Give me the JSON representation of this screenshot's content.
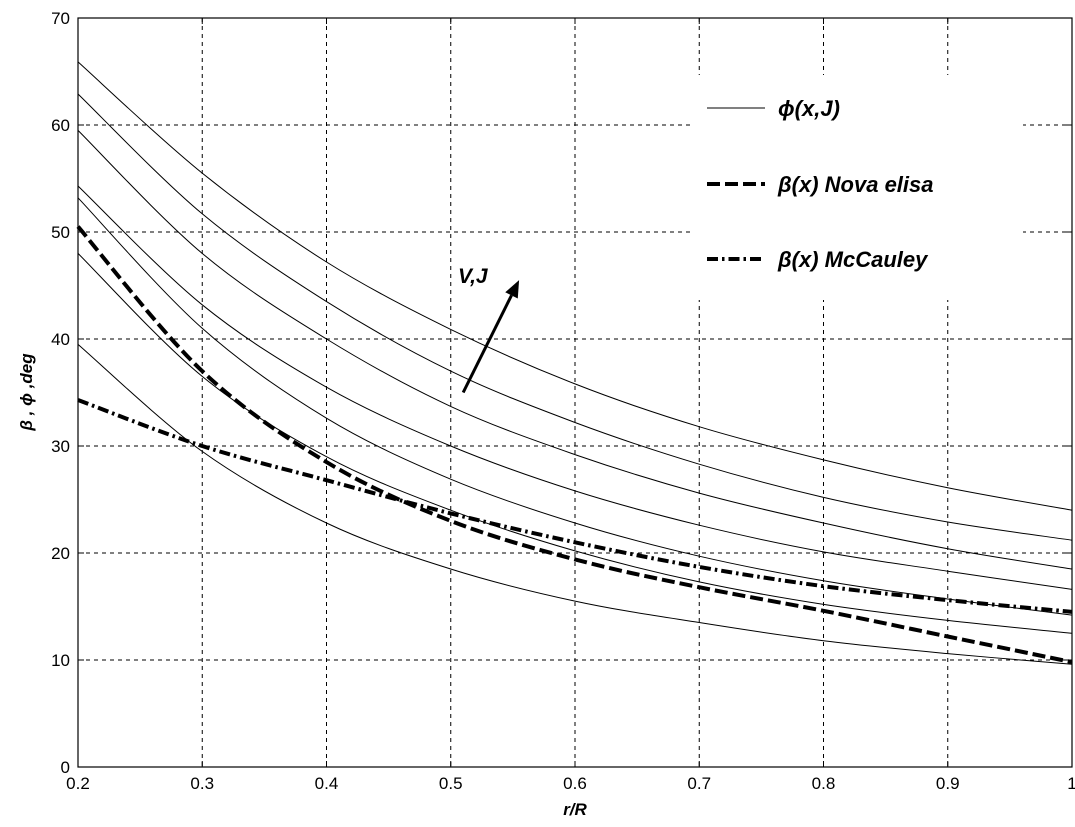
{
  "chart_data": {
    "type": "line",
    "xlabel": "r/R",
    "ylabel": "β , ϕ ,deg",
    "xlim": [
      0.2,
      1.0
    ],
    "ylim": [
      0,
      70
    ],
    "xticks": [
      "0.2",
      "0.3",
      "0.4",
      "0.5",
      "0.6",
      "0.7",
      "0.8",
      "0.9",
      "1"
    ],
    "yticks": [
      "0",
      "10",
      "20",
      "30",
      "40",
      "50",
      "60",
      "70"
    ],
    "grid": true,
    "legend_position": "top-right",
    "annotation": {
      "text": "V,J",
      "arrow_from": [
        0.51,
        35
      ],
      "arrow_to": [
        0.555,
        45.5
      ]
    },
    "legend": [
      {
        "label": "ϕ(x,J)",
        "style": "solid-thin"
      },
      {
        "label": "β(x) Nova elisa",
        "style": "dashed-thick"
      },
      {
        "label": "β(x) McCauley",
        "style": "dashdot-thick"
      }
    ],
    "x": [
      0.2,
      0.3,
      0.4,
      0.5,
      0.6,
      0.7,
      0.8,
      0.9,
      1.0
    ],
    "series": [
      {
        "group": "phi",
        "style": "solid-thin",
        "values": [
          39.5,
          29.5,
          22.8,
          18.5,
          15.5,
          13.5,
          11.8,
          10.6,
          9.6
        ]
      },
      {
        "group": "phi",
        "style": "solid-thin",
        "values": [
          48.0,
          36.5,
          29.0,
          24.0,
          20.2,
          17.3,
          15.2,
          13.7,
          12.5
        ]
      },
      {
        "group": "phi",
        "style": "solid-thin",
        "values": [
          53.2,
          41.0,
          32.6,
          26.9,
          22.8,
          19.7,
          17.4,
          15.7,
          14.2
        ]
      },
      {
        "group": "phi",
        "style": "solid-thin",
        "values": [
          54.3,
          43.2,
          35.5,
          30.0,
          25.8,
          22.6,
          20.1,
          18.3,
          16.6
        ]
      },
      {
        "group": "phi",
        "style": "solid-thin",
        "values": [
          59.5,
          48.0,
          40.0,
          33.7,
          29.2,
          25.6,
          22.8,
          20.4,
          18.5
        ]
      },
      {
        "group": "phi",
        "style": "solid-thin",
        "values": [
          62.9,
          51.7,
          43.5,
          37.0,
          32.2,
          28.3,
          25.2,
          22.9,
          21.2
        ]
      },
      {
        "group": "phi",
        "style": "solid-thin",
        "values": [
          65.9,
          55.5,
          47.2,
          40.9,
          35.8,
          31.8,
          28.7,
          26.1,
          24.0
        ]
      },
      {
        "name": "β(x) Nova elisa",
        "style": "dashed-thick",
        "values": [
          50.5,
          37.0,
          28.5,
          23.0,
          19.4,
          16.8,
          14.6,
          12.2,
          9.8
        ]
      },
      {
        "name": "β(x) McCauley",
        "style": "dashdot-thick",
        "values": [
          34.3,
          30.0,
          26.8,
          23.7,
          21.0,
          18.7,
          16.9,
          15.6,
          14.5
        ]
      }
    ]
  }
}
